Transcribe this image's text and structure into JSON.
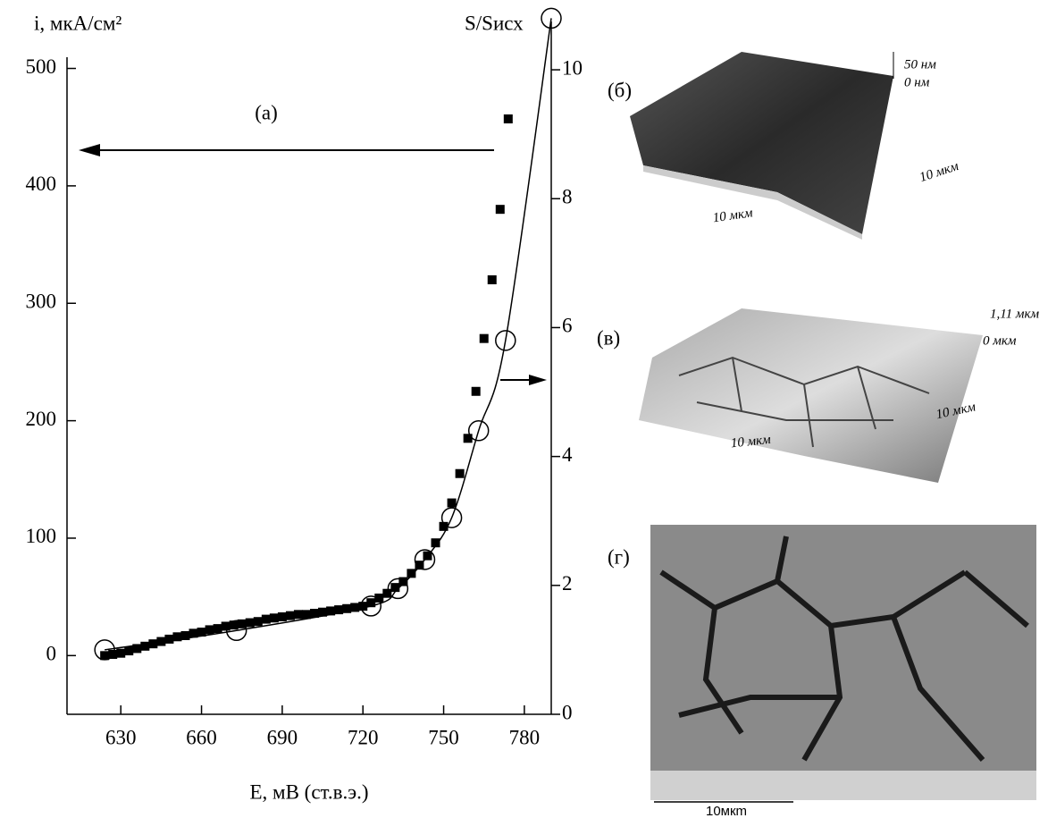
{
  "chart_data": {
    "type": "scatter-dual",
    "title": "(а)",
    "xlabel": "E, мВ (ст.в.э.)",
    "ylabel": "i, мкА/см²",
    "y2label": "S/Sисх",
    "xlim": [
      610,
      790
    ],
    "xticks": [
      630,
      660,
      690,
      720,
      750,
      780
    ],
    "ylim": [
      -50,
      540
    ],
    "yticks": [
      0,
      100,
      200,
      300,
      400,
      500
    ],
    "y2lim": [
      0,
      10.75
    ],
    "y2ticks": [
      0,
      2,
      4,
      6,
      8,
      10
    ],
    "series": [
      {
        "marker": "square",
        "color": "#000000",
        "axis": "y",
        "x": [
          624,
          627,
          630,
          633,
          636,
          639,
          642,
          645,
          648,
          651,
          654,
          657,
          660,
          663,
          666,
          669,
          672,
          675,
          678,
          681,
          684,
          687,
          690,
          693,
          696,
          699,
          702,
          705,
          708,
          711,
          714,
          717,
          720,
          723,
          726,
          729,
          732,
          735,
          738,
          741,
          744,
          747,
          750,
          753,
          756,
          759,
          762,
          765,
          768,
          771,
          774
        ],
        "values": [
          0,
          1,
          2,
          4,
          6,
          8,
          10,
          12,
          14,
          16,
          17,
          19,
          20,
          22,
          23,
          25,
          26,
          27,
          28,
          29,
          31,
          32,
          33,
          34,
          35,
          35,
          36,
          37,
          38,
          39,
          40,
          41,
          42,
          45,
          49,
          53,
          58,
          63,
          70,
          77,
          85,
          96,
          110,
          130,
          155,
          185,
          225,
          270,
          320,
          380,
          457
        ]
      },
      {
        "marker": "circle-line",
        "color": "#000000",
        "axis": "y2",
        "x": [
          624,
          673,
          723,
          733,
          743,
          753,
          763,
          773,
          790
        ],
        "values": [
          1.0,
          1.3,
          1.68,
          1.95,
          2.4,
          3.05,
          4.4,
          5.8,
          10.8
        ]
      }
    ]
  },
  "panels": [
    {
      "label": "(б)",
      "texts": [
        "50 нм",
        "0 нм",
        "10 мкм",
        "10 мкм"
      ]
    },
    {
      "label": "(в)",
      "texts": [
        "1,11 мкм",
        "0 мкм",
        "10 мкм",
        "10 мкм"
      ]
    },
    {
      "label": "(г)",
      "texts": [
        "10мкm"
      ]
    }
  ]
}
